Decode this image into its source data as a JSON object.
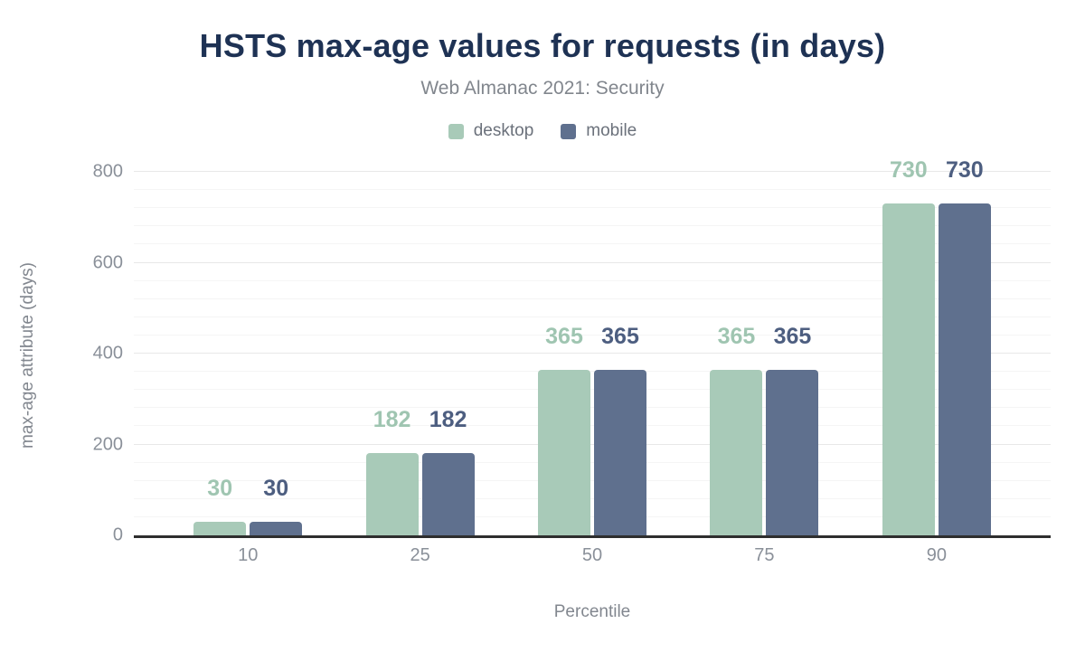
{
  "title": "HSTS max-age values for requests (in days)",
  "subtitle": "Web Almanac 2021: Security",
  "chart_data": {
    "type": "bar",
    "title": "HSTS max-age values for requests (in days)",
    "subtitle": "Web Almanac 2021: Security",
    "categories": [
      "10",
      "25",
      "50",
      "75",
      "90"
    ],
    "series": [
      {
        "name": "desktop",
        "color": "#a8cab8",
        "label_color": "#9fc5b1",
        "values": [
          30,
          182,
          365,
          365,
          730
        ]
      },
      {
        "name": "mobile",
        "color": "#5f708e",
        "label_color": "#4d5e80",
        "values": [
          30,
          182,
          365,
          365,
          730
        ]
      }
    ],
    "xlabel": "Percentile",
    "ylabel": "max-age attribute (days)",
    "ylim": [
      0,
      800
    ],
    "yticks": [
      0,
      200,
      400,
      600,
      800
    ],
    "minor_grid_step": 40,
    "major_grid_step": 200,
    "grid": "on",
    "legend_position": "top",
    "colors": {
      "title": "#1e3254",
      "subtitle": "#81868d",
      "axis_text": "#8a9099",
      "axis_title_text": "#82878f",
      "axis_line": "#2e2e2e",
      "grid_minor": "#f5f5f5",
      "grid_major": "#e8e8e8",
      "background": "#ffffff"
    }
  }
}
